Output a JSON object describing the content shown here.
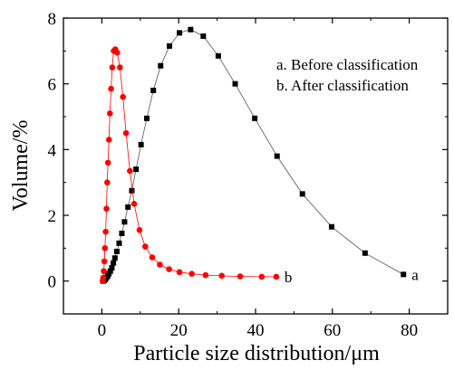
{
  "chart_data": {
    "type": "scatter",
    "xlabel": "Particle size distribution/μm",
    "ylabel": "Volume/%",
    "xlim": [
      -10,
      90
    ],
    "ylim": [
      -1,
      8
    ],
    "xticks": [
      0,
      20,
      40,
      60,
      80
    ],
    "yticks": [
      0,
      2,
      4,
      6,
      8
    ],
    "xtick_labels": [
      "0",
      "20",
      "40",
      "60",
      "80"
    ],
    "ytick_labels": [
      "0",
      "2",
      "4",
      "6",
      "8"
    ],
    "grid": false,
    "legend": {
      "placement": "top-right",
      "entries": [
        "a. Before classification",
        "b. After classification"
      ]
    },
    "series": [
      {
        "label": "a",
        "marker": "square",
        "color": "#000000",
        "x": [
          0.3,
          0.6,
          0.9,
          1.2,
          1.5,
          1.8,
          2.2,
          2.6,
          3.0,
          3.4,
          3.9,
          4.5,
          5.2,
          5.9,
          6.8,
          7.8,
          8.9,
          10.2,
          11.7,
          13.4,
          15.3,
          17.6,
          20.2,
          23.1,
          26.4,
          30.3,
          34.7,
          39.8,
          45.6,
          52.2,
          59.8,
          68.5,
          78.5
        ],
        "y": [
          0.0,
          0.02,
          0.05,
          0.1,
          0.15,
          0.22,
          0.3,
          0.4,
          0.55,
          0.7,
          0.9,
          1.15,
          1.45,
          1.8,
          2.25,
          2.75,
          3.4,
          4.15,
          4.95,
          5.8,
          6.55,
          7.15,
          7.55,
          7.65,
          7.45,
          6.85,
          6.0,
          4.95,
          3.8,
          2.65,
          1.65,
          0.85,
          0.2
        ]
      },
      {
        "label": "b",
        "marker": "circle",
        "color": "#ff0000",
        "x": [
          0.2,
          0.35,
          0.5,
          0.65,
          0.8,
          1.0,
          1.2,
          1.4,
          1.6,
          1.85,
          2.1,
          2.4,
          2.7,
          3.1,
          3.5,
          4.0,
          4.7,
          5.5,
          6.3,
          7.3,
          8.4,
          9.8,
          11.3,
          13.1,
          15.1,
          17.5,
          20.2,
          23.4,
          27.0,
          31.2,
          36.0,
          41.6,
          45.4
        ],
        "y": [
          0.0,
          0.1,
          0.3,
          0.6,
          1.0,
          1.5,
          2.2,
          3.0,
          3.6,
          4.3,
          5.1,
          5.85,
          6.5,
          7.0,
          7.05,
          6.95,
          6.5,
          5.6,
          4.5,
          3.35,
          2.35,
          1.55,
          1.05,
          0.72,
          0.5,
          0.36,
          0.27,
          0.22,
          0.18,
          0.16,
          0.14,
          0.13,
          0.13
        ]
      }
    ]
  }
}
